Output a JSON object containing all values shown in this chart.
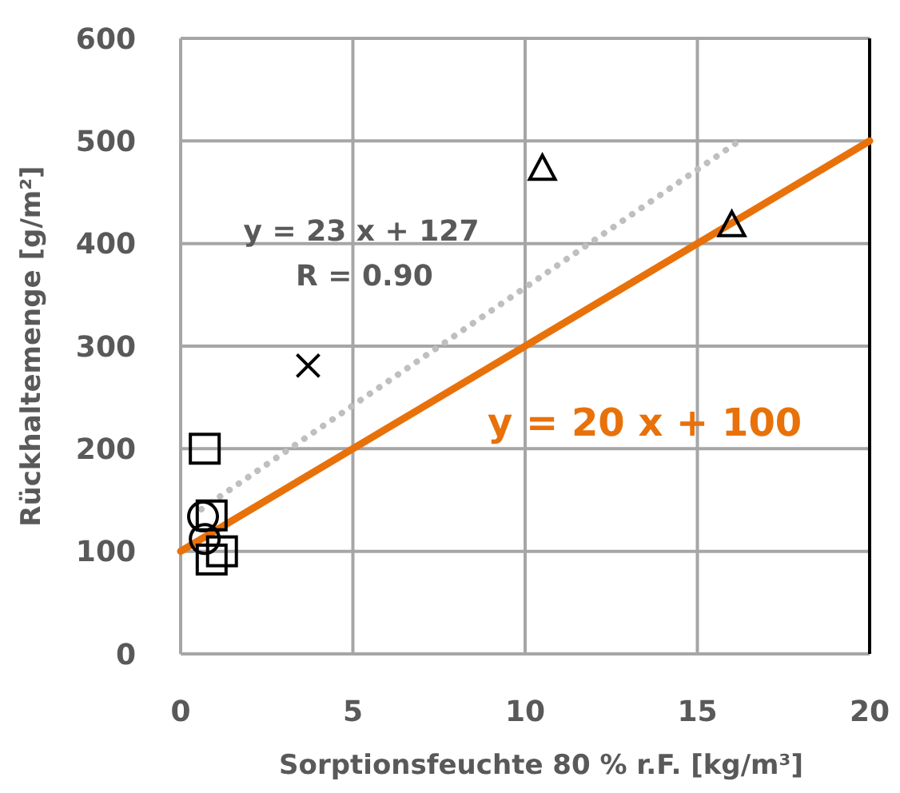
{
  "chart_data": {
    "type": "scatter",
    "xlabel": "Sorptionsfeuchte 80 % r.F. [kg/m³]",
    "ylabel": "Rückhaltemenge [g/m²]",
    "xlim": [
      0,
      20
    ],
    "xticks": [
      0,
      5,
      10,
      15,
      20
    ],
    "ylim": [
      0,
      600
    ],
    "yticks": [
      0,
      100,
      200,
      300,
      400,
      500,
      600
    ],
    "grid": true,
    "series": [
      {
        "marker": "square",
        "color": "#000000",
        "x": [
          0.7,
          0.9,
          0.9,
          1.2
        ],
        "values": [
          200,
          135,
          92,
          100
        ]
      },
      {
        "marker": "circle",
        "color": "#000000",
        "x": [
          0.65,
          0.7
        ],
        "values": [
          134,
          112
        ]
      },
      {
        "marker": "cross",
        "color": "#000000",
        "x": [
          3.7
        ],
        "values": [
          281
        ]
      },
      {
        "marker": "triangle",
        "color": "#000000",
        "x": [
          10.5,
          16.0
        ],
        "values": [
          472,
          417
        ]
      },
      {
        "type": "line",
        "line_style": "dotted",
        "color": "#bfbfbf",
        "x": [
          0.6,
          16.3
        ],
        "values": [
          141,
          502
        ]
      },
      {
        "type": "line",
        "line_style": "solid",
        "color": "#e8710a",
        "x": [
          0,
          20
        ],
        "values": [
          100,
          500
        ]
      }
    ],
    "annotations": [
      "y = 23 x + 127",
      "R = 0.90",
      "y = 20 x + 100"
    ]
  }
}
